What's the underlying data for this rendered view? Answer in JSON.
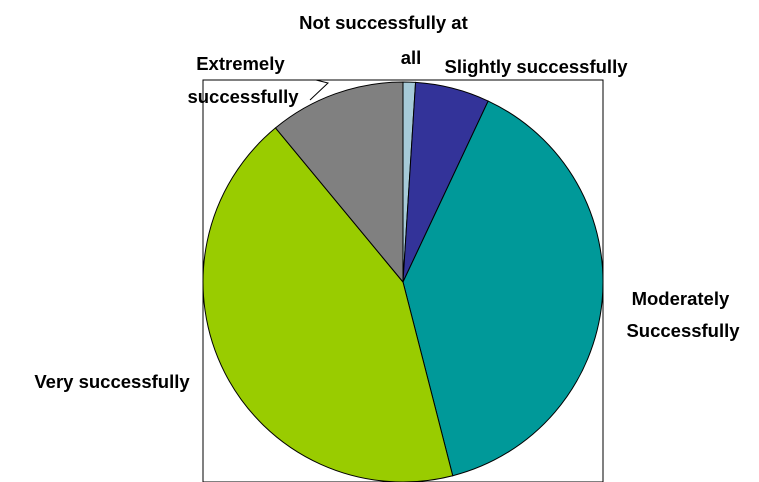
{
  "chart_data": {
    "type": "pie",
    "title": "",
    "slices": [
      {
        "label_lines": [
          "Not successfully at",
          "all"
        ],
        "value": 1,
        "color": "#a6cad8"
      },
      {
        "label_lines": [
          "Slightly successfully"
        ],
        "value": 6,
        "color": "#333399"
      },
      {
        "label_lines": [
          "Moderately",
          "Successfully"
        ],
        "value": 39,
        "color": "#009999"
      },
      {
        "label_lines": [
          "Very successfully"
        ],
        "value": 43,
        "color": "#99cc00"
      },
      {
        "label_lines": [
          "Extremely",
          "successfully"
        ],
        "value": 11,
        "color": "#808080"
      }
    ],
    "start_angle_deg": 0,
    "direction": "clockwise",
    "legend": "none"
  }
}
